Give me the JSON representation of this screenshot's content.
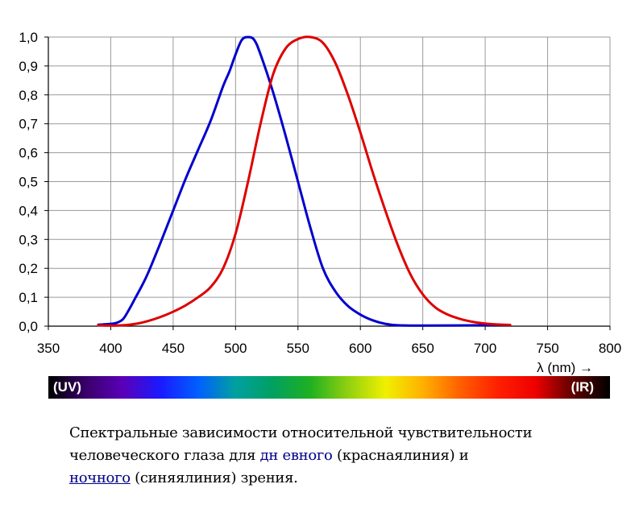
{
  "chart_data": {
    "type": "line",
    "x_label": "λ (nm) →",
    "xlim": [
      350,
      800
    ],
    "ylim": [
      0,
      1.0
    ],
    "x_ticks": [
      350,
      400,
      450,
      500,
      550,
      600,
      650,
      700,
      750,
      800
    ],
    "y_ticks": [
      "0,0",
      "0,1",
      "0,2",
      "0,3",
      "0,4",
      "0,5",
      "0,6",
      "0,7",
      "0,8",
      "0,9",
      "1,0"
    ],
    "grid": true,
    "series": [
      {
        "color": "#0000cc",
        "points": [
          [
            390,
            0.005
          ],
          [
            400,
            0.008
          ],
          [
            405,
            0.012
          ],
          [
            410,
            0.025
          ],
          [
            415,
            0.06
          ],
          [
            420,
            0.1
          ],
          [
            425,
            0.14
          ],
          [
            430,
            0.185
          ],
          [
            440,
            0.29
          ],
          [
            450,
            0.4
          ],
          [
            460,
            0.51
          ],
          [
            470,
            0.61
          ],
          [
            480,
            0.71
          ],
          [
            490,
            0.83
          ],
          [
            495,
            0.88
          ],
          [
            500,
            0.94
          ],
          [
            505,
            0.99
          ],
          [
            510,
            1.0
          ],
          [
            515,
            0.99
          ],
          [
            520,
            0.94
          ],
          [
            530,
            0.81
          ],
          [
            540,
            0.66
          ],
          [
            550,
            0.5
          ],
          [
            560,
            0.34
          ],
          [
            570,
            0.2
          ],
          [
            580,
            0.12
          ],
          [
            590,
            0.07
          ],
          [
            600,
            0.04
          ],
          [
            610,
            0.02
          ],
          [
            620,
            0.008
          ],
          [
            630,
            0.003
          ],
          [
            650,
            0.002
          ],
          [
            700,
            0.003
          ],
          [
            720,
            0.004
          ]
        ]
      },
      {
        "color": "#dd0000",
        "points": [
          [
            390,
            0.003
          ],
          [
            400,
            0.002
          ],
          [
            410,
            0.003
          ],
          [
            420,
            0.008
          ],
          [
            430,
            0.018
          ],
          [
            440,
            0.032
          ],
          [
            450,
            0.05
          ],
          [
            460,
            0.072
          ],
          [
            470,
            0.1
          ],
          [
            480,
            0.135
          ],
          [
            490,
            0.2
          ],
          [
            500,
            0.32
          ],
          [
            510,
            0.5
          ],
          [
            520,
            0.7
          ],
          [
            530,
            0.87
          ],
          [
            540,
            0.96
          ],
          [
            550,
            0.993
          ],
          [
            560,
            1.0
          ],
          [
            570,
            0.98
          ],
          [
            580,
            0.91
          ],
          [
            590,
            0.8
          ],
          [
            600,
            0.67
          ],
          [
            610,
            0.53
          ],
          [
            620,
            0.4
          ],
          [
            630,
            0.28
          ],
          [
            640,
            0.18
          ],
          [
            650,
            0.11
          ],
          [
            660,
            0.065
          ],
          [
            670,
            0.04
          ],
          [
            680,
            0.025
          ],
          [
            690,
            0.015
          ],
          [
            700,
            0.009
          ],
          [
            710,
            0.006
          ],
          [
            720,
            0.004
          ]
        ]
      }
    ]
  },
  "spectrum": {
    "left_label": "(UV)",
    "right_label": "(IR)",
    "colors": [
      "#000000",
      "#3a006a",
      "#5a00b8",
      "#1a1aff",
      "#0060ff",
      "#00a0a0",
      "#00a060",
      "#20b020",
      "#90d010",
      "#f0f000",
      "#ffb000",
      "#ff6000",
      "#ff2000",
      "#ee0000",
      "#600000",
      "#000000"
    ]
  },
  "caption": {
    "line1": "Спектральные зависимости относительной чувствительности",
    "line2_a": "человеческого глаза для",
    "day_link": "дн евного",
    "line2_b": "(краснаялиния) и",
    "night_link": "ночного",
    "line3_b": "(синяялиния) зрения."
  }
}
